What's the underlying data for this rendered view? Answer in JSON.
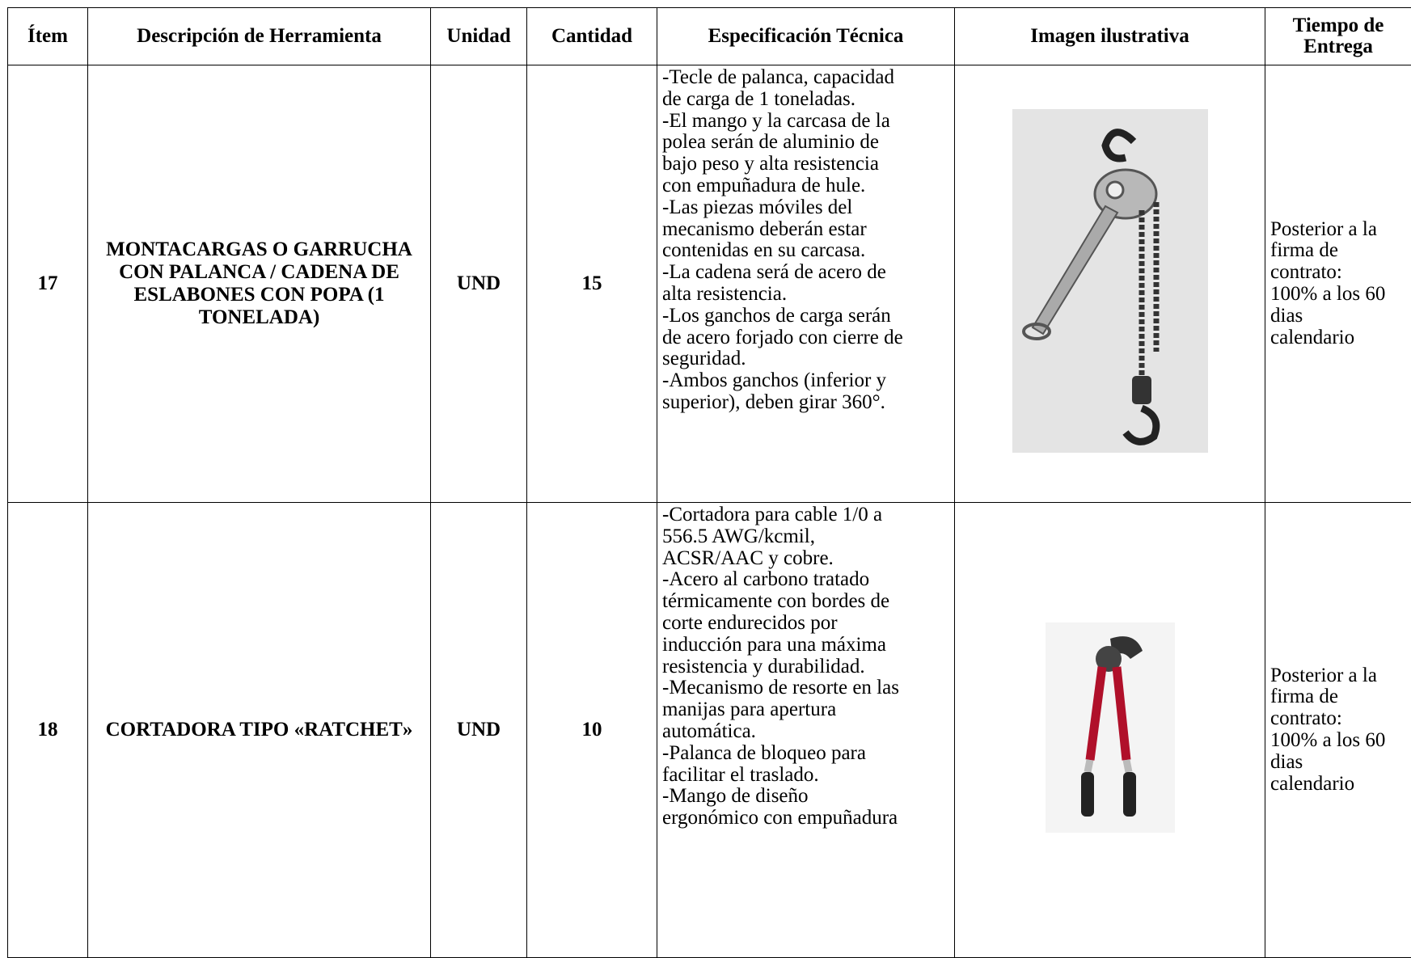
{
  "table": {
    "header": [
      "Ítem",
      "Descripción de Herramienta",
      "Unidad",
      "Cantidad",
      "Especificación Técnica",
      "Imagen ilustrativa",
      "Tiempo de Entrega"
    ],
    "rows": [
      {
        "item": "17",
        "description": "MONTACARGAS O GARRUCHA CON PALANCA / CADENA DE ESLABONES CON POPA (1 TONELADA)",
        "unit": "UND",
        "quantity": "15",
        "spec": [
          "-Tecle de palanca, capacidad",
          "de carga de 1 toneladas.",
          "-El mango y la carcasa de la",
          "polea serán de aluminio de",
          "bajo peso y alta resistencia",
          "con empuñadura de hule.",
          "-Las piezas móviles del",
          "mecanismo deberán estar",
          "contenidas en su carcasa.",
          "-La cadena será de acero de",
          "alta resistencia.",
          "-Los ganchos de carga serán",
          "de acero forjado con cierre de",
          "seguridad.",
          "-Ambos ganchos (inferior y",
          "superior), deben girar 360°."
        ],
        "delivery": [
          "Posterior a la",
          "firma de",
          "contrato:",
          "100% a los 60",
          "dias",
          "calendario"
        ]
      },
      {
        "item": "18",
        "description": "CORTADORA TIPO «RATCHET»",
        "unit": "UND",
        "quantity": "10",
        "spec": [
          "-Cortadora para cable 1/0 a",
          "556.5 AWG/kcmil,",
          "ACSR/AAC y cobre.",
          "-Acero al carbono tratado",
          "térmicamente con bordes de",
          "corte endurecidos por",
          "inducción para una máxima",
          "resistencia y durabilidad.",
          "-Mecanismo de resorte en las",
          "manijas para apertura",
          "automática.",
          "-Palanca de bloqueo para",
          "facilitar el traslado.",
          "-Mango de diseño",
          "ergonómico con empuñadura"
        ],
        "delivery": [
          "Posterior a la",
          "firma de",
          "contrato:",
          "100% a los 60",
          "dias",
          "calendario"
        ]
      }
    ]
  }
}
